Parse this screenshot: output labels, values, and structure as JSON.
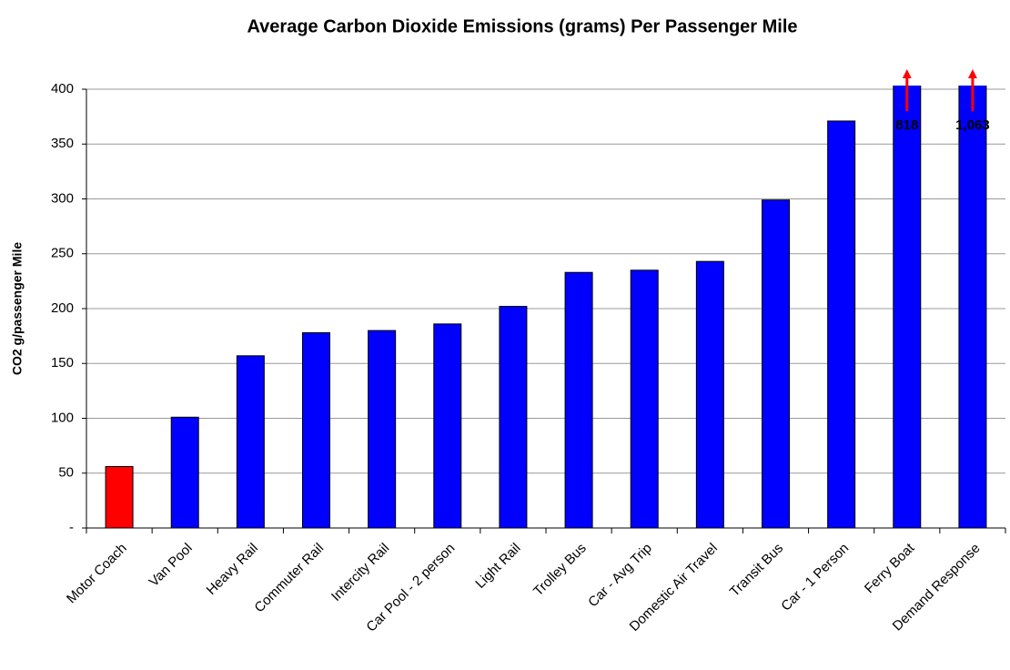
{
  "chart_data": {
    "type": "bar",
    "title": "Average Carbon Dioxide Emissions (grams) Per Passenger Mile",
    "y_label": "CO2 g/passenger Mile",
    "categories": [
      "Motor Coach",
      "Van Pool",
      "Heavy Rail",
      "Commuter Rail",
      "Intercity Rail",
      "Car Pool - 2 person",
      "Light Rail",
      "Trolley Bus",
      "Car - Avg Trip",
      "Domestic Air Travel",
      "Transit Bus",
      "Car - 1 Person",
      "Ferry Boat",
      "Demand Response"
    ],
    "values": [
      56,
      101,
      157,
      178,
      180,
      186,
      202,
      233,
      235,
      243,
      299,
      371,
      818,
      1063
    ],
    "value_labels": [
      null,
      null,
      null,
      null,
      null,
      null,
      null,
      null,
      null,
      null,
      null,
      null,
      "818",
      "1,063"
    ],
    "colors": [
      "#ff0000",
      "#0000ff",
      "#0000ff",
      "#0000ff",
      "#0000ff",
      "#0000ff",
      "#0000ff",
      "#0000ff",
      "#0000ff",
      "#0000ff",
      "#0000ff",
      "#0000ff",
      "#0000ff",
      "#0000ff"
    ],
    "ylim": [
      0,
      400
    ],
    "yticks": [
      {
        "value": 0,
        "label": "-"
      },
      50,
      100,
      150,
      200,
      250,
      300,
      350,
      400
    ],
    "grid": true
  }
}
